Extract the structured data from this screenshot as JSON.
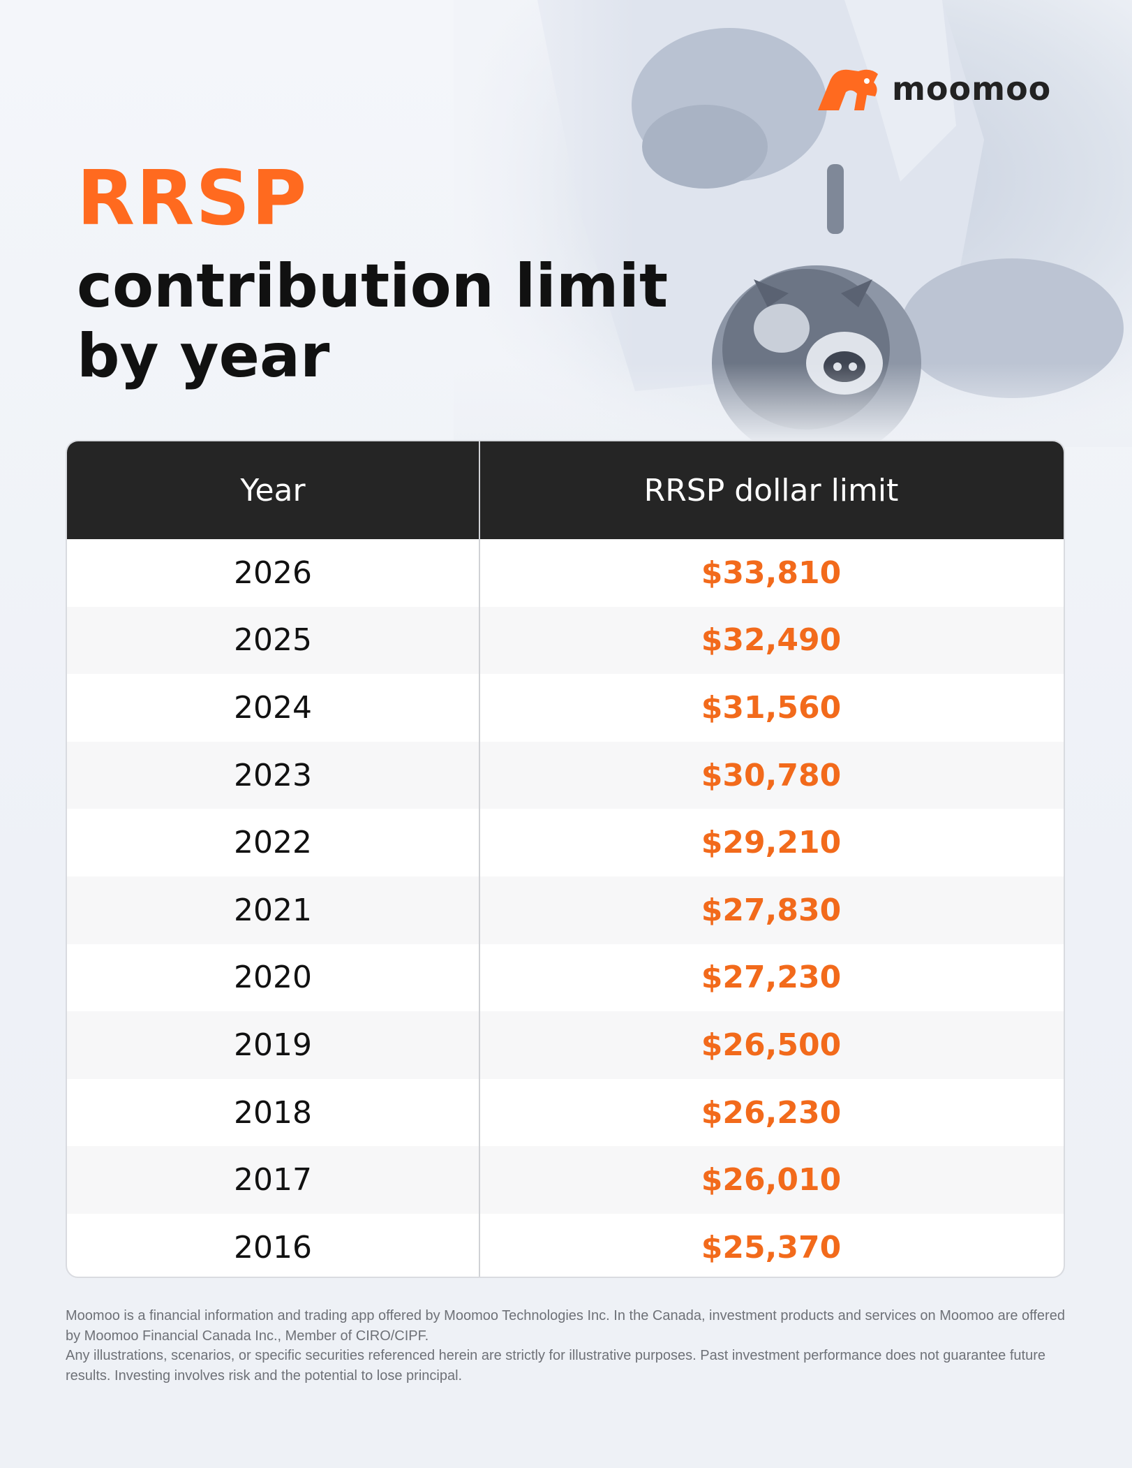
{
  "brand": {
    "name": "moomoo",
    "accent": "#ff6a1f"
  },
  "title": {
    "accent": "RRSP",
    "main": "contribution limit by year"
  },
  "chart_data": {
    "type": "table",
    "columns": [
      "Year",
      "RRSP dollar limit"
    ],
    "rows": [
      [
        "2026",
        "$33,810"
      ],
      [
        "2025",
        "$32,490"
      ],
      [
        "2024",
        "$31,560"
      ],
      [
        "2023",
        "$30,780"
      ],
      [
        "2022",
        "$29,210"
      ],
      [
        "2021",
        "$27,830"
      ],
      [
        "2020",
        "$27,230"
      ],
      [
        "2019",
        "$26,500"
      ],
      [
        "2018",
        "$26,230"
      ],
      [
        "2017",
        "$26,010"
      ],
      [
        "2016",
        "$25,370"
      ]
    ]
  },
  "disclaimer": {
    "line1": "Moomoo is a financial information and trading app offered by Moomoo Technologies Inc. In the Canada, investment products and services on Moomoo are offered by Moomoo Financial Canada Inc., Member of CIRO/CIPF.",
    "line2": "Any illustrations, scenarios, or specific securities referenced herein are strictly for illustrative purposes. Past investment performance does not guarantee future results. Investing involves risk and the potential to lose principal."
  }
}
